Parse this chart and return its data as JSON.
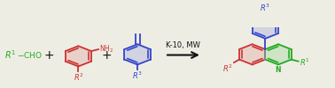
{
  "bg_color": "#eeede4",
  "green_color": "#22aa22",
  "red_color": "#cc3333",
  "blue_color": "#3344cc",
  "black_color": "#111111",
  "arrow_label": "K-10, MW",
  "fig_width": 3.78,
  "fig_height": 1.0,
  "dpi": 100,
  "lw": 1.3
}
